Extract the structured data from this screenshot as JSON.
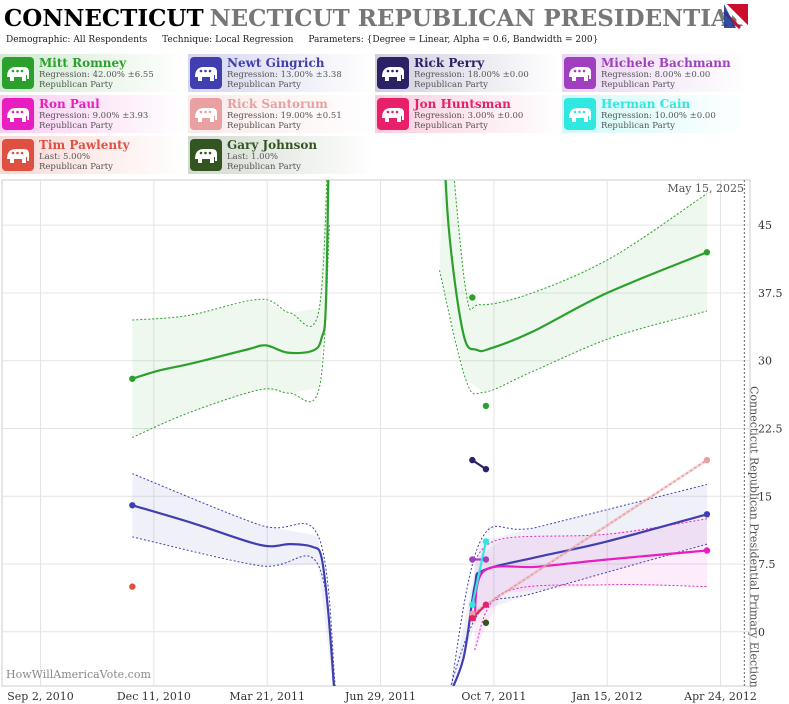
{
  "header": {
    "title_state": "CONNECTICUT",
    "title_rest": "NECTICUT REPUBLICAN PRESIDENTIAL PRIMAR",
    "demographic_label": "Demographic:",
    "demographic_value": "All Respondents",
    "technique_label": "Technique:",
    "technique_value": "Local Regression",
    "parameters_label": "Parameters:",
    "parameters_value": "{Degree = Linear, Alpha = 0.6, Bandwidth = 200}"
  },
  "candidates": [
    {
      "name": "Mitt Romney",
      "line2": "Regression: 42.00% ±6.55",
      "party": "Republican Party",
      "color": "#2ca02c"
    },
    {
      "name": "Newt Gingrich",
      "line2": "Regression: 13.00% ±3.38",
      "party": "Republican Party",
      "color": "#3f3faf"
    },
    {
      "name": "Rick Perry",
      "line2": "Regression: 18.00% ±0.00",
      "party": "Republican Party",
      "color": "#2b2266"
    },
    {
      "name": "Michele Bachmann",
      "line2": "Regression: 8.00% ±0.00",
      "party": "Republican Party",
      "color": "#a040c0"
    },
    {
      "name": "Ron Paul",
      "line2": "Regression: 9.00% ±3.93",
      "party": "Republican Party",
      "color": "#e81ec0"
    },
    {
      "name": "Rick Santorum",
      "line2": "Regression: 19.00% ±0.51",
      "party": "Republican Party",
      "color": "#e8a0a0"
    },
    {
      "name": "Jon Huntsman",
      "line2": "Regression: 3.00% ±0.00",
      "party": "Republican Party",
      "color": "#e8206a"
    },
    {
      "name": "Herman Cain",
      "line2": "Regression: 10.00% ±0.00",
      "party": "Republican Party",
      "color": "#30e8e0"
    },
    {
      "name": "Tim Pawlenty",
      "line2": "Last: 5.00%",
      "party": "Republican Party",
      "color": "#e05040"
    },
    {
      "name": "Gary Johnson",
      "line2": "Last: 1.00%",
      "party": "Republican Party",
      "color": "#335522"
    }
  ],
  "chart_data": {
    "type": "line",
    "y_ticks": [
      "0",
      "7.5",
      "15",
      "22.5",
      "30",
      "37.5",
      "45"
    ],
    "ylim": [
      -6,
      50
    ],
    "x_ticks": [
      "Sep 2, 2010",
      "Dec 11, 2010",
      "Mar 21, 2011",
      "Jun 29, 2011",
      "Oct 7, 2011",
      "Jan 15, 2012",
      "Apr 24, 2012"
    ],
    "xlim": [
      "2010-07-30",
      "2012-05-20"
    ],
    "date_annotation": "May 15, 2025",
    "vertical_label": "Connecticut Republican Presidential Primary Election",
    "watermark": "HowWillAmericaVote.com",
    "series": [
      {
        "name": "Mitt Romney",
        "color": "#2ca02c",
        "trend_a": [
          [
            "2010-11-22",
            28
          ],
          [
            "2010-12-15",
            28.9
          ],
          [
            "2011-01-10",
            29.6
          ],
          [
            "2011-02-05",
            30.4
          ],
          [
            "2011-03-05",
            31.3
          ],
          [
            "2011-03-20",
            31.7
          ],
          [
            "2011-04-08",
            30.9
          ],
          [
            "2011-04-30",
            31.1
          ],
          [
            "2011-05-08",
            32.5
          ],
          [
            "2011-05-12",
            37
          ],
          [
            "2011-05-15",
            60
          ]
        ],
        "band_a_upper": [
          [
            "2010-11-22",
            34.5
          ],
          [
            "2011-01-10",
            35
          ],
          [
            "2011-03-15",
            36.8
          ],
          [
            "2011-04-10",
            35.3
          ],
          [
            "2011-05-06",
            35.8
          ],
          [
            "2011-05-15",
            60
          ]
        ],
        "band_a_lower": [
          [
            "2010-11-22",
            21.5
          ],
          [
            "2011-01-10",
            24.2
          ],
          [
            "2011-03-15",
            26.8
          ],
          [
            "2011-04-10",
            26.4
          ],
          [
            "2011-05-06",
            27
          ],
          [
            "2011-05-15",
            45
          ]
        ],
        "trend_b": [
          [
            "2011-08-22",
            60
          ],
          [
            "2011-08-28",
            45
          ],
          [
            "2011-09-10",
            33
          ],
          [
            "2011-09-22",
            31.2
          ],
          [
            "2011-10-05",
            31.4
          ],
          [
            "2011-11-10",
            33.2
          ],
          [
            "2012-01-15",
            37.5
          ],
          [
            "2012-04-12",
            42
          ]
        ],
        "band_b_upper": [
          [
            "2011-08-26",
            60
          ],
          [
            "2011-09-12",
            38
          ],
          [
            "2011-09-25",
            36.2
          ],
          [
            "2011-11-10",
            37.5
          ],
          [
            "2012-01-20",
            41.5
          ],
          [
            "2012-04-12",
            48.5
          ]
        ],
        "band_b_lower": [
          [
            "2011-08-20",
            40
          ],
          [
            "2011-09-12",
            28
          ],
          [
            "2011-09-28",
            26.5
          ],
          [
            "2011-11-10",
            28.8
          ],
          [
            "2012-01-20",
            32.6
          ],
          [
            "2012-04-12",
            35.5
          ]
        ],
        "points": [
          [
            "2010-11-22",
            28
          ],
          [
            "2011-09-18",
            37
          ],
          [
            "2011-09-30",
            25
          ],
          [
            "2012-04-12",
            42
          ]
        ]
      },
      {
        "name": "Newt Gingrich",
        "color": "#3f3faf",
        "trend_a": [
          [
            "2010-11-22",
            14
          ],
          [
            "2011-01-15",
            12
          ],
          [
            "2011-03-15",
            9.6
          ],
          [
            "2011-04-10",
            9.7
          ],
          [
            "2011-04-30",
            9.4
          ],
          [
            "2011-05-08",
            8.2
          ],
          [
            "2011-05-14",
            2
          ],
          [
            "2011-05-20",
            -8
          ]
        ],
        "band_a_upper": [
          [
            "2010-11-22",
            17.5
          ],
          [
            "2011-03-15",
            11.8
          ],
          [
            "2011-05-05",
            10.6
          ],
          [
            "2011-05-20",
            -6
          ]
        ],
        "band_a_lower": [
          [
            "2010-11-22",
            10.5
          ],
          [
            "2011-03-15",
            7.3
          ],
          [
            "2011-05-05",
            7.4
          ],
          [
            "2011-05-20",
            -8
          ]
        ],
        "trend_b": [
          [
            "2011-08-25",
            -8
          ],
          [
            "2011-09-10",
            -3
          ],
          [
            "2011-09-20",
            5
          ],
          [
            "2011-09-28",
            6.8
          ],
          [
            "2011-11-15",
            8.3
          ],
          [
            "2012-01-15",
            10
          ],
          [
            "2012-04-12",
            13
          ]
        ],
        "band_b_upper": [
          [
            "2011-08-28",
            -8
          ],
          [
            "2011-09-25",
            10
          ],
          [
            "2011-11-15",
            11.6
          ],
          [
            "2012-04-12",
            16.3
          ]
        ],
        "band_b_lower": [
          [
            "2011-08-25",
            -8
          ],
          [
            "2011-09-25",
            2.3
          ],
          [
            "2011-11-15",
            4.4
          ],
          [
            "2012-04-12",
            9.7
          ]
        ],
        "points": [
          [
            "2010-11-22",
            14
          ],
          [
            "2012-04-12",
            13
          ]
        ]
      },
      {
        "name": "Ron Paul",
        "color": "#e81ec0",
        "trend": [
          [
            "2011-09-20",
            1.2
          ],
          [
            "2011-09-28",
            6.7
          ],
          [
            "2011-11-15",
            7.2
          ],
          [
            "2012-01-15",
            8
          ],
          [
            "2012-04-12",
            9
          ]
        ],
        "band_upper": [
          [
            "2011-09-20",
            8
          ],
          [
            "2011-10-15",
            10.3
          ],
          [
            "2012-01-15",
            10.8
          ],
          [
            "2012-04-12",
            12.5
          ]
        ],
        "band_lower": [
          [
            "2011-09-20",
            -2
          ],
          [
            "2011-10-15",
            4.3
          ],
          [
            "2012-01-15",
            5.2
          ],
          [
            "2012-04-12",
            5
          ]
        ],
        "points": [
          [
            "2011-09-18",
            2
          ],
          [
            "2012-04-12",
            9
          ]
        ]
      },
      {
        "name": "Rick Santorum",
        "color": "#e8a0a0",
        "trend": [
          [
            "2011-09-18",
            2
          ],
          [
            "2012-04-12",
            19
          ]
        ],
        "points": [
          [
            "2011-09-18",
            2
          ],
          [
            "2012-04-12",
            19
          ]
        ]
      },
      {
        "name": "Rick Perry",
        "color": "#2b2266",
        "trend": [
          [
            "2011-09-18",
            19
          ],
          [
            "2011-09-30",
            18
          ]
        ],
        "points": [
          [
            "2011-09-18",
            19
          ],
          [
            "2011-09-30",
            18
          ]
        ]
      },
      {
        "name": "Michele Bachmann",
        "color": "#a040c0",
        "trend": [
          [
            "2011-09-18",
            8
          ],
          [
            "2011-09-30",
            8
          ]
        ],
        "points": [
          [
            "2011-09-18",
            8
          ],
          [
            "2011-09-30",
            8
          ]
        ]
      },
      {
        "name": "Herman Cain",
        "color": "#30e8e0",
        "trend": [
          [
            "2011-09-18",
            3
          ],
          [
            "2011-09-30",
            10
          ]
        ],
        "points": [
          [
            "2011-09-18",
            3
          ],
          [
            "2011-09-30",
            10
          ]
        ]
      },
      {
        "name": "Jon Huntsman",
        "color": "#e8206a",
        "trend": [
          [
            "2011-09-18",
            1.5
          ],
          [
            "2011-09-30",
            3
          ]
        ],
        "points": [
          [
            "2011-09-18",
            1.5
          ],
          [
            "2011-09-30",
            3
          ]
        ]
      },
      {
        "name": "Tim Pawlenty",
        "color": "#e05040",
        "points": [
          [
            "2010-11-22",
            5
          ]
        ]
      },
      {
        "name": "Gary Johnson",
        "color": "#335522",
        "points": [
          [
            "2011-09-30",
            1
          ]
        ]
      }
    ]
  }
}
